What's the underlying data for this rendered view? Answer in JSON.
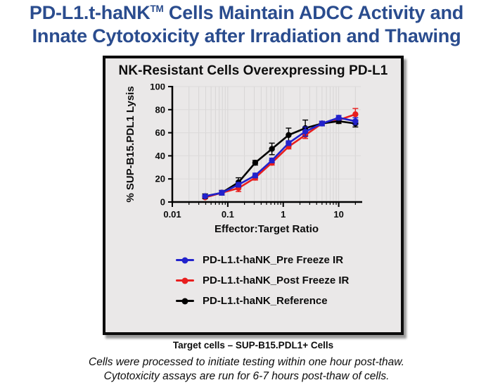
{
  "slide": {
    "title_line1_pre": "PD-L1.t-haNK",
    "title_tm": "TM",
    "title_line1_post": " Cells Maintain ADCC Activity and",
    "title_line2": "Innate Cytotoxicity after Irradiation and Thawing",
    "title_color": "#2a4c8e"
  },
  "panel": {
    "title": "NK-Resistant Cells Overexpressing PD-L1",
    "caption": "Target cells – SUP-B15.PDL1+ Cells"
  },
  "footer": {
    "line1": "Cells were processed to initiate testing within one hour post-thaw.",
    "line2": "Cytotoxicity assays are run for 6-7 hours post-thaw of cells."
  },
  "chart_data": {
    "type": "line",
    "title": "NK-Resistant Cells Overexpressing PD-L1",
    "xlabel": "Effector:Target Ratio",
    "ylabel": "% SUP-B15.PDL1 Lysis",
    "x_scale": "log",
    "xlim": [
      0.01,
      25
    ],
    "ylim": [
      0,
      100
    ],
    "xticks": [
      0.01,
      0.1,
      1,
      10
    ],
    "yticks": [
      0,
      20,
      40,
      60,
      80,
      100
    ],
    "grid": true,
    "legend_position": "below",
    "draw_order": [
      1,
      2,
      0
    ],
    "x": [
      0.039,
      0.078,
      0.156,
      0.3125,
      0.625,
      1.25,
      2.5,
      5,
      10,
      20
    ],
    "series": [
      {
        "name": "PD-L1.t-haNK_Pre Freeze IR",
        "color": "#2222cc",
        "values": [
          5,
          8,
          15,
          23,
          36,
          51,
          61,
          68,
          73,
          70
        ],
        "errors": [
          1,
          2,
          2,
          2,
          2,
          2,
          4,
          2,
          2,
          3
        ]
      },
      {
        "name": "PD-L1.t-haNK_Post Freeze IR",
        "color": "#e81e1e",
        "values": [
          4,
          8,
          12,
          21,
          34,
          48,
          58,
          68,
          71,
          76
        ],
        "errors": [
          1,
          2,
          3,
          2,
          2,
          2,
          3,
          2,
          2,
          5
        ]
      },
      {
        "name": "PD-L1.t-haNK_Reference",
        "color": "#000000",
        "values": [
          5,
          8,
          17,
          34,
          46,
          58,
          64,
          68,
          70,
          68
        ],
        "errors": [
          2,
          2,
          4,
          2,
          5,
          6,
          7,
          2,
          2,
          3
        ]
      }
    ]
  }
}
